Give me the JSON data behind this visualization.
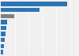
{
  "values": [
    479,
    278,
    95,
    48,
    40,
    35,
    28,
    22,
    15
  ],
  "colors": [
    "#2e75b6",
    "#2e75b6",
    "#808080",
    "#2e75b6",
    "#2e75b6",
    "#2e75b6",
    "#2e75b6",
    "#2e75b6",
    "#2e75b6"
  ],
  "background_color": "#f0f0f0",
  "bar_height": 0.7,
  "xlim": [
    0,
    560
  ],
  "ylim": [
    -0.55,
    8.55
  ]
}
